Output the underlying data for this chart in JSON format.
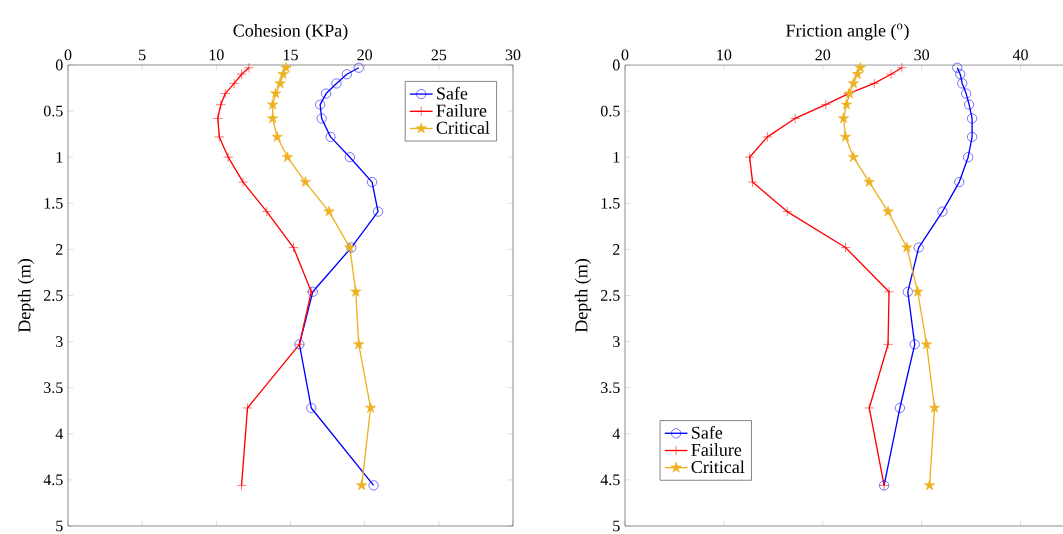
{
  "chart_data": [
    {
      "type": "line",
      "xlabel": "Cohesion (KPa)",
      "ylabel": "Depth (m)",
      "xlim": [
        0,
        30
      ],
      "xticks": [
        0,
        5,
        10,
        15,
        20,
        25,
        30
      ],
      "ylim": [
        5,
        0
      ],
      "yticks": [
        0,
        0.5,
        1,
        1.5,
        2,
        2.5,
        3,
        3.5,
        4,
        4.5,
        5
      ],
      "legend": "top right",
      "series": [
        {
          "name": "Safe",
          "color": "#0000ff",
          "marker": "circle",
          "x": [
            19.6,
            18.8,
            18.1,
            17.4,
            17.0,
            17.1,
            17.7,
            19.0,
            20.5,
            20.9,
            19.1,
            16.5,
            15.6,
            16.4,
            20.6
          ],
          "values": [
            0.03,
            0.1,
            0.2,
            0.31,
            0.43,
            0.58,
            0.78,
            1.0,
            1.27,
            1.59,
            1.98,
            2.46,
            3.03,
            3.72,
            4.56
          ]
        },
        {
          "name": "Failure",
          "color": "#ff0000",
          "marker": "cross",
          "x": [
            12.2,
            11.7,
            11.2,
            10.6,
            10.3,
            10.1,
            10.2,
            10.8,
            11.8,
            13.4,
            15.2,
            16.4,
            15.6,
            12.1,
            11.7
          ],
          "values": [
            0.03,
            0.1,
            0.2,
            0.31,
            0.43,
            0.58,
            0.78,
            1.0,
            1.27,
            1.59,
            1.98,
            2.46,
            3.03,
            3.72,
            4.56
          ]
        },
        {
          "name": "Critical",
          "color": "#edb120",
          "marker": "star",
          "x": [
            14.7,
            14.5,
            14.3,
            14.0,
            13.8,
            13.8,
            14.1,
            14.8,
            16.0,
            17.6,
            19.0,
            19.4,
            19.6,
            20.4,
            19.8
          ],
          "values": [
            0.03,
            0.1,
            0.2,
            0.31,
            0.43,
            0.58,
            0.78,
            1.0,
            1.27,
            1.59,
            1.98,
            2.46,
            3.03,
            3.72,
            4.56
          ]
        }
      ]
    },
    {
      "type": "line",
      "xlabel": "Friction angle ($^{o}$)",
      "ylabel": "Depth (m)",
      "xlim": [
        0,
        45
      ],
      "xticks": [
        0,
        10,
        20,
        30,
        40
      ],
      "ylim": [
        5,
        0
      ],
      "yticks": [
        0,
        0.5,
        1,
        1.5,
        2,
        2.5,
        3,
        3.5,
        4,
        4.5,
        5
      ],
      "legend": "bottom left",
      "series": [
        {
          "name": "Safe",
          "color": "#0000ff",
          "marker": "circle",
          "x": [
            33.6,
            33.9,
            34.1,
            34.5,
            34.8,
            35.1,
            35.1,
            34.7,
            33.8,
            32.1,
            29.7,
            28.6,
            29.3,
            27.8,
            26.2
          ],
          "values": [
            0.03,
            0.1,
            0.2,
            0.31,
            0.43,
            0.58,
            0.78,
            1.0,
            1.27,
            1.59,
            1.98,
            2.46,
            3.03,
            3.72,
            4.56
          ]
        },
        {
          "name": "Failure",
          "color": "#ff0000",
          "marker": "cross",
          "x": [
            28.0,
            26.9,
            25.2,
            22.6,
            20.3,
            17.2,
            14.4,
            12.6,
            12.9,
            16.4,
            22.3,
            26.7,
            26.6,
            24.7,
            26.2
          ],
          "values": [
            0.03,
            0.1,
            0.2,
            0.31,
            0.43,
            0.58,
            0.78,
            1.0,
            1.27,
            1.59,
            1.98,
            2.46,
            3.03,
            3.72,
            4.56
          ]
        },
        {
          "name": "Critical",
          "color": "#edb120",
          "marker": "star",
          "x": [
            23.8,
            23.5,
            23.1,
            22.7,
            22.4,
            22.1,
            22.3,
            23.1,
            24.7,
            26.6,
            28.5,
            29.6,
            30.5,
            31.3,
            30.8
          ],
          "values": [
            0.03,
            0.1,
            0.2,
            0.31,
            0.43,
            0.58,
            0.78,
            1.0,
            1.27,
            1.59,
            1.98,
            2.46,
            3.03,
            3.72,
            4.56
          ]
        }
      ]
    }
  ]
}
